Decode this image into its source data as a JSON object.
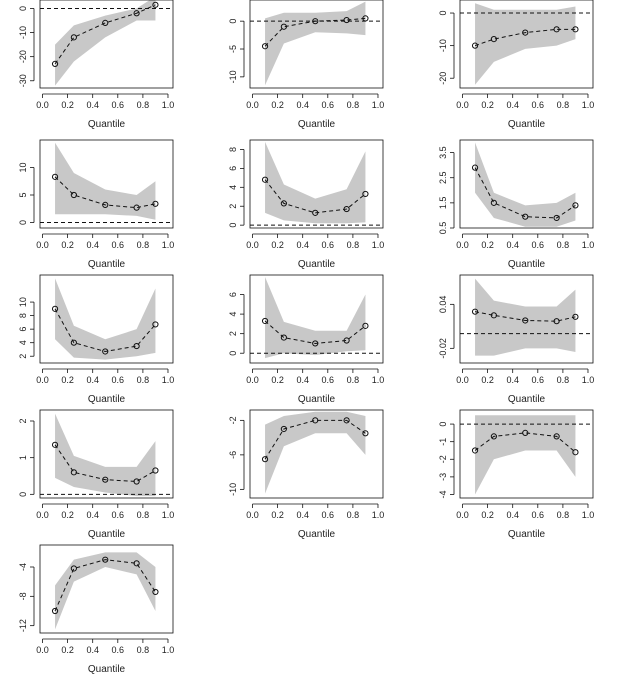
{
  "chart_data": [
    {
      "type": "line",
      "xlabel": "Quantile",
      "x": [
        0.1,
        0.25,
        0.5,
        0.75,
        0.9
      ],
      "values": [
        -23,
        -12,
        -6,
        -2,
        1.5
      ],
      "lower": [
        -32,
        -22,
        -12,
        -5,
        -5
      ],
      "upper": [
        -15,
        -7,
        -3,
        0,
        5
      ],
      "ylim": [
        -33,
        3.5
      ],
      "yticks": [
        0,
        -10,
        -20,
        -30
      ],
      "xticks": [
        0.0,
        0.2,
        0.4,
        0.6,
        0.8,
        1.0
      ],
      "xticklabels": [
        "0.0",
        "0.2",
        "0.4",
        "0.6",
        "0.8",
        "1.0"
      ],
      "refline": 0
    },
    {
      "type": "line",
      "xlabel": "Quantile",
      "x": [
        0.1,
        0.25,
        0.5,
        0.75,
        0.9
      ],
      "values": [
        -4.5,
        -1,
        0,
        0.2,
        0.5
      ],
      "lower": [
        -11.5,
        -4,
        -2,
        -2.2,
        -2.5
      ],
      "upper": [
        0.5,
        1.5,
        1.5,
        1.8,
        3.5
      ],
      "ylim": [
        -12,
        3.8
      ],
      "yticks": [
        0,
        -5,
        -10
      ],
      "xticks": [
        0.0,
        0.2,
        0.4,
        0.6,
        0.8,
        1.0
      ],
      "xticklabels": [
        "0.0",
        "0.2",
        "0.4",
        "0.6",
        "0.8",
        "1.0"
      ],
      "refline": 0
    },
    {
      "type": "line",
      "xlabel": "Quantile",
      "x": [
        0.1,
        0.25,
        0.5,
        0.75,
        0.9
      ],
      "values": [
        -10,
        -8,
        -6,
        -5,
        -5
      ],
      "lower": [
        -22,
        -15,
        -11,
        -10,
        -8
      ],
      "upper": [
        3,
        1,
        1,
        1,
        2
      ],
      "ylim": [
        -23,
        4
      ],
      "yticks": [
        0,
        -10,
        -20
      ],
      "xticks": [
        0.0,
        0.2,
        0.4,
        0.6,
        0.8,
        1.0
      ],
      "xticklabels": [
        "0.0",
        "0.2",
        "0.4",
        "0.6",
        "0.8",
        "1.0"
      ],
      "refline": 0
    },
    {
      "type": "line",
      "xlabel": "Quantile",
      "x": [
        0.1,
        0.25,
        0.5,
        0.75,
        0.9
      ],
      "values": [
        8.3,
        5,
        3.2,
        2.7,
        3.4
      ],
      "lower": [
        1.5,
        1.5,
        1.5,
        1.2,
        0.5
      ],
      "upper": [
        14.5,
        9,
        6,
        5,
        7.5
      ],
      "ylim": [
        -1,
        15
      ],
      "yticks": [
        0,
        5,
        10
      ],
      "xticks": [
        0.0,
        0.2,
        0.4,
        0.6,
        0.8,
        1.0
      ],
      "xticklabels": [
        "0.0",
        "0.2",
        "0.4",
        "0.6",
        "0.8",
        "1.0"
      ],
      "refline": 0
    },
    {
      "type": "line",
      "xlabel": "Quantile",
      "x": [
        0.1,
        0.25,
        0.5,
        0.75,
        0.9
      ],
      "values": [
        4.8,
        2.3,
        1.3,
        1.7,
        3.3
      ],
      "lower": [
        1.3,
        0.5,
        0.2,
        0.2,
        0.3
      ],
      "upper": [
        8.8,
        4.3,
        2.8,
        3.8,
        7.8
      ],
      "ylim": [
        -0.3,
        9
      ],
      "yticks": [
        0,
        2,
        4,
        6,
        8
      ],
      "xticks": [
        0.0,
        0.2,
        0.4,
        0.6,
        0.8,
        1.0
      ],
      "xticklabels": [
        "0.0",
        "0.2",
        "0.4",
        "0.6",
        "0.8",
        "1.0"
      ],
      "refline": 0
    },
    {
      "type": "line",
      "xlabel": "Quantile",
      "x": [
        0.1,
        0.25,
        0.5,
        0.75,
        0.9
      ],
      "values": [
        2.9,
        1.5,
        0.95,
        0.9,
        1.4
      ],
      "lower": [
        1.9,
        0.9,
        0.55,
        0.55,
        0.8
      ],
      "upper": [
        3.9,
        1.9,
        1.4,
        1.5,
        1.9
      ],
      "ylim": [
        0.5,
        4
      ],
      "yticks": [
        0.5,
        1.5,
        2.5,
        3.5
      ],
      "xticks": [
        0.0,
        0.2,
        0.4,
        0.6,
        0.8,
        1.0
      ],
      "xticklabels": [
        "0.0",
        "0.2",
        "0.4",
        "0.6",
        "0.8",
        "1.0"
      ],
      "refline": null
    },
    {
      "type": "line",
      "xlabel": "Quantile",
      "x": [
        0.1,
        0.25,
        0.5,
        0.75,
        0.9
      ],
      "values": [
        9,
        4,
        2.7,
        3.5,
        6.7
      ],
      "lower": [
        4.5,
        1.8,
        1.5,
        2,
        2.5
      ],
      "upper": [
        13.5,
        6.5,
        4.5,
        6,
        12
      ],
      "ylim": [
        1,
        14
      ],
      "yticks": [
        2,
        4,
        6,
        8,
        10
      ],
      "xticks": [
        0.0,
        0.2,
        0.4,
        0.6,
        0.8,
        1.0
      ],
      "xticklabels": [
        "0.0",
        "0.2",
        "0.4",
        "0.6",
        "0.8",
        "1.0"
      ],
      "refline": null
    },
    {
      "type": "line",
      "xlabel": "Quantile",
      "x": [
        0.1,
        0.25,
        0.5,
        0.75,
        0.9
      ],
      "values": [
        3.3,
        1.6,
        1,
        1.3,
        2.8
      ],
      "lower": [
        -0.5,
        0,
        -0.2,
        0.2,
        0.3
      ],
      "upper": [
        7.8,
        3.2,
        2.3,
        2.3,
        6
      ],
      "ylim": [
        -1,
        8
      ],
      "yticks": [
        0,
        2,
        4,
        6
      ],
      "xticks": [
        0.0,
        0.2,
        0.4,
        0.6,
        0.8,
        1.0
      ],
      "xticklabels": [
        "0.0",
        "0.2",
        "0.4",
        "0.6",
        "0.8",
        "1.0"
      ],
      "refline": 0
    },
    {
      "type": "line",
      "xlabel": "Quantile",
      "x": [
        0.1,
        0.25,
        0.5,
        0.75,
        0.9
      ],
      "values": [
        0.03,
        0.025,
        0.018,
        0.017,
        0.023
      ],
      "lower": [
        -0.03,
        -0.03,
        -0.02,
        -0.02,
        -0.025
      ],
      "upper": [
        0.075,
        0.045,
        0.037,
        0.037,
        0.06
      ],
      "ylim": [
        -0.04,
        0.08
      ],
      "yticks": [
        -0.02,
        0.04
      ],
      "xticks": [
        0.0,
        0.2,
        0.4,
        0.6,
        0.8,
        1.0
      ],
      "xticklabels": [
        "0.0",
        "0.2",
        "0.4",
        "0.6",
        "0.8",
        "1.0"
      ],
      "refline": 0
    },
    {
      "type": "line",
      "xlabel": "Quantile",
      "x": [
        0.1,
        0.25,
        0.5,
        0.75,
        0.9
      ],
      "values": [
        1.35,
        0.6,
        0.4,
        0.35,
        0.65
      ],
      "lower": [
        0.45,
        0.2,
        0.05,
        -0.05,
        -0.05
      ],
      "upper": [
        2.2,
        1.05,
        0.75,
        0.75,
        1.45
      ],
      "ylim": [
        -0.1,
        2.3
      ],
      "yticks": [
        0.0,
        1.0,
        2.0
      ],
      "xticks": [
        0.0,
        0.2,
        0.4,
        0.6,
        0.8,
        1.0
      ],
      "xticklabels": [
        "0.0",
        "0.2",
        "0.4",
        "0.6",
        "0.8",
        "1.0"
      ],
      "refline": 0
    },
    {
      "type": "line",
      "xlabel": "Quantile",
      "x": [
        0.1,
        0.25,
        0.5,
        0.75,
        0.9
      ],
      "values": [
        -6.5,
        -3,
        -2,
        -2,
        -3.5
      ],
      "lower": [
        -10.5,
        -5,
        -3.5,
        -3.5,
        -6
      ],
      "upper": [
        -2.5,
        -1.5,
        -1,
        -1,
        -1.5
      ],
      "ylim": [
        -11,
        -0.8
      ],
      "yticks": [
        -2,
        -6,
        -10
      ],
      "xticks": [
        0.0,
        0.2,
        0.4,
        0.6,
        0.8,
        1.0
      ],
      "xticklabels": [
        "0.0",
        "0.2",
        "0.4",
        "0.6",
        "0.8",
        "1.0"
      ],
      "refline": null
    },
    {
      "type": "line",
      "xlabel": "Quantile",
      "x": [
        0.1,
        0.25,
        0.5,
        0.75,
        0.9
      ],
      "values": [
        -1.5,
        -0.7,
        -0.5,
        -0.7,
        -1.6
      ],
      "lower": [
        -4,
        -2,
        -1.5,
        -1.5,
        -3
      ],
      "upper": [
        0.5,
        0.5,
        0.5,
        0.5,
        0.5
      ],
      "ylim": [
        -4.2,
        0.8
      ],
      "yticks": [
        0,
        -1,
        -2,
        -3,
        -4
      ],
      "xticks": [
        0.0,
        0.2,
        0.4,
        0.6,
        0.8,
        1.0
      ],
      "xticklabels": [
        "0.0",
        "0.2",
        "0.4",
        "0.6",
        "0.8",
        "1.0"
      ],
      "refline": 0
    },
    {
      "type": "line",
      "xlabel": "Quantile",
      "x": [
        0.1,
        0.25,
        0.5,
        0.75,
        0.9
      ],
      "values": [
        -10,
        -4.2,
        -3,
        -3.5,
        -7.4
      ],
      "lower": [
        -12.5,
        -6,
        -4,
        -5,
        -10
      ],
      "upper": [
        -6.5,
        -3,
        -2,
        -2,
        -4
      ],
      "ylim": [
        -13,
        -1
      ],
      "yticks": [
        -4,
        -8,
        -12
      ],
      "xticks": [
        0.0,
        0.2,
        0.4,
        0.6,
        0.8,
        1.0
      ],
      "xticklabels": [
        "0.0",
        "0.2",
        "0.4",
        "0.6",
        "0.8",
        "1.0"
      ],
      "refline": null
    }
  ]
}
